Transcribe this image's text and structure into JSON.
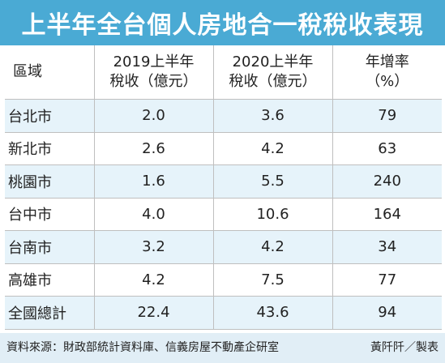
{
  "title": "上半年全台個人房地合一稅稅收表現",
  "table": {
    "headers": [
      {
        "line1": "區域",
        "line2": ""
      },
      {
        "line1": "2019上半年",
        "line2": "稅收（億元）"
      },
      {
        "line1": "2020上半年",
        "line2": "稅收（億元）"
      },
      {
        "line1": "年增率",
        "line2": "（%）"
      }
    ],
    "rows": [
      {
        "region": "台北市",
        "y2019": "2.0",
        "y2020": "3.6",
        "growth": "79"
      },
      {
        "region": "新北市",
        "y2019": "2.6",
        "y2020": "4.2",
        "growth": "63"
      },
      {
        "region": "桃園市",
        "y2019": "1.6",
        "y2020": "5.5",
        "growth": "240"
      },
      {
        "region": "台中市",
        "y2019": "4.0",
        "y2020": "10.6",
        "growth": "164"
      },
      {
        "region": "台南市",
        "y2019": "3.2",
        "y2020": "4.2",
        "growth": "34"
      },
      {
        "region": "高雄市",
        "y2019": "4.2",
        "y2020": "7.5",
        "growth": "77"
      },
      {
        "region": "全國總計",
        "y2019": "22.4",
        "y2020": "43.6",
        "growth": "94"
      }
    ]
  },
  "footer": {
    "source": "資料來源：財政部統計資料庫、信義房屋不動產企研室",
    "credit": "黃阡阡／製表"
  },
  "colors": {
    "title_background": "#4aaad4",
    "row_stripe": "#e6f3fa",
    "footer_background": "#e1eef6"
  }
}
